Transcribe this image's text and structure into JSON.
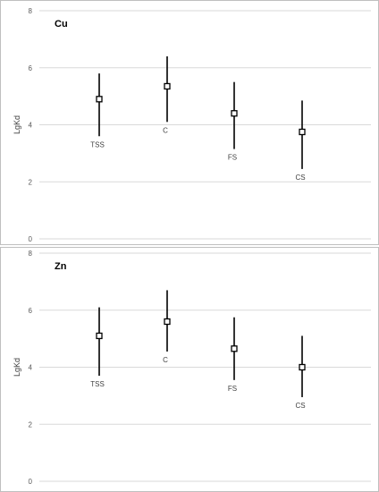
{
  "chart_data": [
    {
      "type": "scatter",
      "title": "Cu",
      "ylabel": "LgKd",
      "xlabel": "",
      "ylim": [
        0,
        8
      ],
      "yticks": [
        "0",
        "2",
        "4",
        "6",
        "8"
      ],
      "grid": true,
      "categories": [
        "TSS",
        "C",
        "FS",
        "CS"
      ],
      "values": [
        4.9,
        5.35,
        4.4,
        3.75
      ],
      "error_low": [
        3.6,
        4.1,
        3.15,
        2.45
      ],
      "error_high": [
        5.8,
        6.4,
        5.5,
        4.85
      ]
    },
    {
      "type": "scatter",
      "title": "Zn",
      "ylabel": "LgKd",
      "xlabel": "",
      "ylim": [
        0,
        8
      ],
      "yticks": [
        "0",
        "2",
        "4",
        "6",
        "8"
      ],
      "grid": true,
      "categories": [
        "TSS",
        "C",
        "FS",
        "CS"
      ],
      "values": [
        5.1,
        5.6,
        4.65,
        4.0
      ],
      "error_low": [
        3.7,
        4.55,
        3.55,
        2.95
      ],
      "error_high": [
        6.1,
        6.7,
        5.75,
        5.1
      ]
    }
  ],
  "colors": {
    "marker": "#000000",
    "grid": "#d9d9d9",
    "border": "#bfbfbf"
  }
}
